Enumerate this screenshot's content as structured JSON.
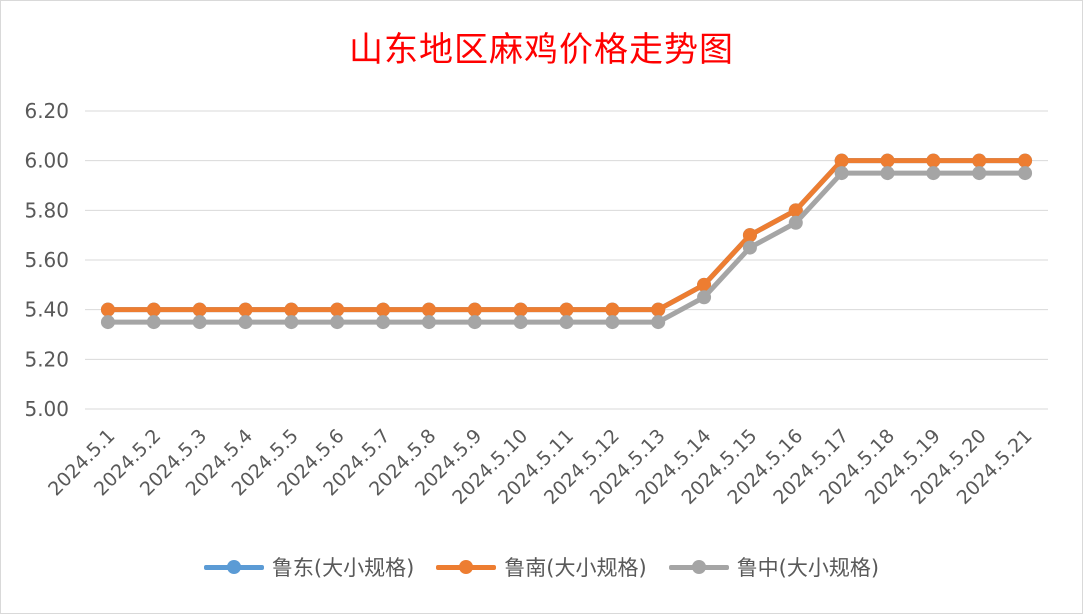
{
  "chart_data": {
    "type": "line",
    "title": "山东地区麻鸡价格走势图",
    "categories": [
      "2024.5.1",
      "2024.5.2",
      "2024.5.3",
      "2024.5.4",
      "2024.5.5",
      "2024.5.6",
      "2024.5.7",
      "2024.5.8",
      "2024.5.9",
      "2024.5.10",
      "2024.5.11",
      "2024.5.12",
      "2024.5.13",
      "2024.5.14",
      "2024.5.15",
      "2024.5.16",
      "2024.5.17",
      "2024.5.18",
      "2024.5.19",
      "2024.5.20",
      "2024.5.21"
    ],
    "ylim": [
      5.0,
      6.2
    ],
    "yticks": [
      "5.00",
      "5.20",
      "5.40",
      "5.60",
      "5.80",
      "6.00",
      "6.20"
    ],
    "grid": true,
    "legend_position": "bottom",
    "series": [
      {
        "name": "鲁东(大小规格)",
        "color": "#5b9bd5",
        "values": [
          5.4,
          5.4,
          5.4,
          5.4,
          5.4,
          5.4,
          5.4,
          5.4,
          5.4,
          5.4,
          5.4,
          5.4,
          5.4,
          5.5,
          5.7,
          5.8,
          6.0,
          6.0,
          6.0,
          6.0,
          6.0
        ]
      },
      {
        "name": "鲁南(大小规格)",
        "color": "#ed7d31",
        "values": [
          5.4,
          5.4,
          5.4,
          5.4,
          5.4,
          5.4,
          5.4,
          5.4,
          5.4,
          5.4,
          5.4,
          5.4,
          5.4,
          5.5,
          5.7,
          5.8,
          6.0,
          6.0,
          6.0,
          6.0,
          6.0
        ]
      },
      {
        "name": "鲁中(大小规格)",
        "color": "#a5a5a5",
        "values": [
          5.35,
          5.35,
          5.35,
          5.35,
          5.35,
          5.35,
          5.35,
          5.35,
          5.35,
          5.35,
          5.35,
          5.35,
          5.35,
          5.45,
          5.65,
          5.75,
          5.95,
          5.95,
          5.95,
          5.95,
          5.95
        ]
      }
    ]
  }
}
